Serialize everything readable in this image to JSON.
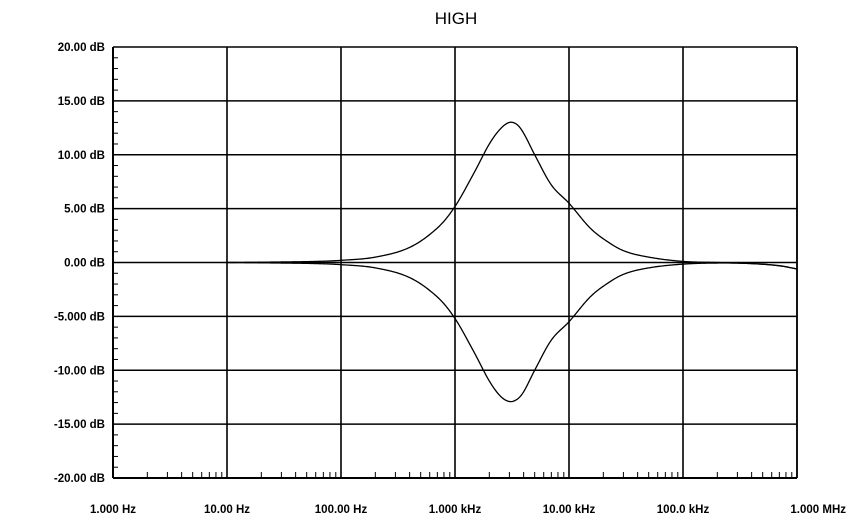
{
  "chart_data": {
    "type": "line",
    "title": "HIGH",
    "xlabel": "",
    "ylabel": "",
    "x_scale": "log",
    "xlim": [
      1,
      1000000
    ],
    "ylim": [
      -20,
      20
    ],
    "grid": true,
    "x_ticks": [
      {
        "value": 1,
        "label": "1.000 Hz"
      },
      {
        "value": 10,
        "label": "10.00 Hz"
      },
      {
        "value": 100,
        "label": "100.00 Hz"
      },
      {
        "value": 1000,
        "label": "1.000 kHz"
      },
      {
        "value": 10000,
        "label": "10.00 kHz"
      },
      {
        "value": 100000,
        "label": "100.0 kHz"
      },
      {
        "value": 1000000,
        "label": "1.000 MHz"
      }
    ],
    "y_ticks": [
      {
        "value": 20,
        "label": "20.00 dB"
      },
      {
        "value": 15,
        "label": "15.00 dB"
      },
      {
        "value": 10,
        "label": "10.00 dB"
      },
      {
        "value": 5,
        "label": "5.00 dB"
      },
      {
        "value": 0,
        "label": "0.00 dB"
      },
      {
        "value": -5,
        "label": "-5.000 dB"
      },
      {
        "value": -10,
        "label": "-10.00 dB"
      },
      {
        "value": -15,
        "label": "-15.00 dB"
      },
      {
        "value": -20,
        "label": "-20.00 dB"
      }
    ],
    "series": [
      {
        "color": "#000000",
        "x": [
          10,
          30,
          60,
          100,
          200,
          400,
          700,
          1000,
          1500,
          2000,
          2500,
          3000,
          3500,
          4000,
          5000,
          7000,
          10000,
          15000,
          20000,
          30000,
          50000,
          100000,
          200000,
          400000,
          700000,
          1000000
        ],
        "y": [
          0,
          0.05,
          0.1,
          0.2,
          0.5,
          1.4,
          3.2,
          5.2,
          8.5,
          11.0,
          12.4,
          13.0,
          12.8,
          12.0,
          10.0,
          7.2,
          5.5,
          3.3,
          2.2,
          1.1,
          0.5,
          0.1,
          0.0,
          -0.1,
          -0.3,
          -0.6
        ]
      },
      {
        "color": "#000000",
        "x": [
          10,
          30,
          60,
          100,
          200,
          400,
          700,
          1000,
          1500,
          2000,
          2500,
          3000,
          3500,
          4000,
          5000,
          7000,
          10000,
          15000,
          20000,
          30000,
          50000,
          100000,
          200000,
          400000,
          700000,
          1000000
        ],
        "y": [
          0,
          -0.05,
          -0.1,
          -0.2,
          -0.5,
          -1.4,
          -3.2,
          -5.2,
          -8.5,
          -11.0,
          -12.4,
          -12.9,
          -12.7,
          -12.0,
          -10.0,
          -7.2,
          -5.5,
          -3.3,
          -2.2,
          -1.1,
          -0.5,
          -0.15,
          -0.05,
          -0.1,
          -0.3,
          -0.6
        ]
      }
    ]
  }
}
